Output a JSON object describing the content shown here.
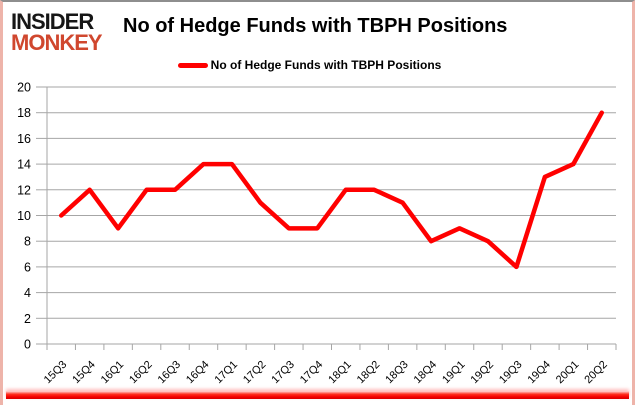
{
  "logo": {
    "line1": "INSIDER",
    "line2": "MONKEY"
  },
  "header": {
    "title": "No of Hedge Funds with TBPH Positions"
  },
  "legend": {
    "label": "No of Hedge Funds with TBPH Positions"
  },
  "colors": {
    "line": "#ff0000",
    "grid": "#a6a6a6",
    "axis_text": "#000000",
    "logo_black": "#161616",
    "logo_red": "#d0472e",
    "border_side": "#eeb4aa",
    "border_top": "#8e8e8e",
    "bottom_bar": "#ff0000"
  },
  "chart_data": {
    "type": "line",
    "title": "No of Hedge Funds with TBPH Positions",
    "categories": [
      "15Q3",
      "15Q4",
      "16Q1",
      "16Q2",
      "16Q3",
      "16Q4",
      "17Q1",
      "17Q2",
      "17Q3",
      "17Q4",
      "18Q1",
      "18Q2",
      "18Q3",
      "18Q4",
      "19Q1",
      "19Q2",
      "19Q3",
      "19Q4",
      "20Q1",
      "20Q2"
    ],
    "series": [
      {
        "name": "No of Hedge Funds with TBPH Positions",
        "color": "#ff0000",
        "values": [
          10,
          12,
          9,
          12,
          12,
          14,
          14,
          11,
          9,
          9,
          12,
          12,
          11,
          8,
          9,
          8,
          6,
          13,
          14,
          18
        ]
      }
    ],
    "ylim": [
      0,
      20
    ],
    "ytick_step": 2,
    "grid": true,
    "legend_position": "top-center",
    "x_label_rotation": -45
  }
}
